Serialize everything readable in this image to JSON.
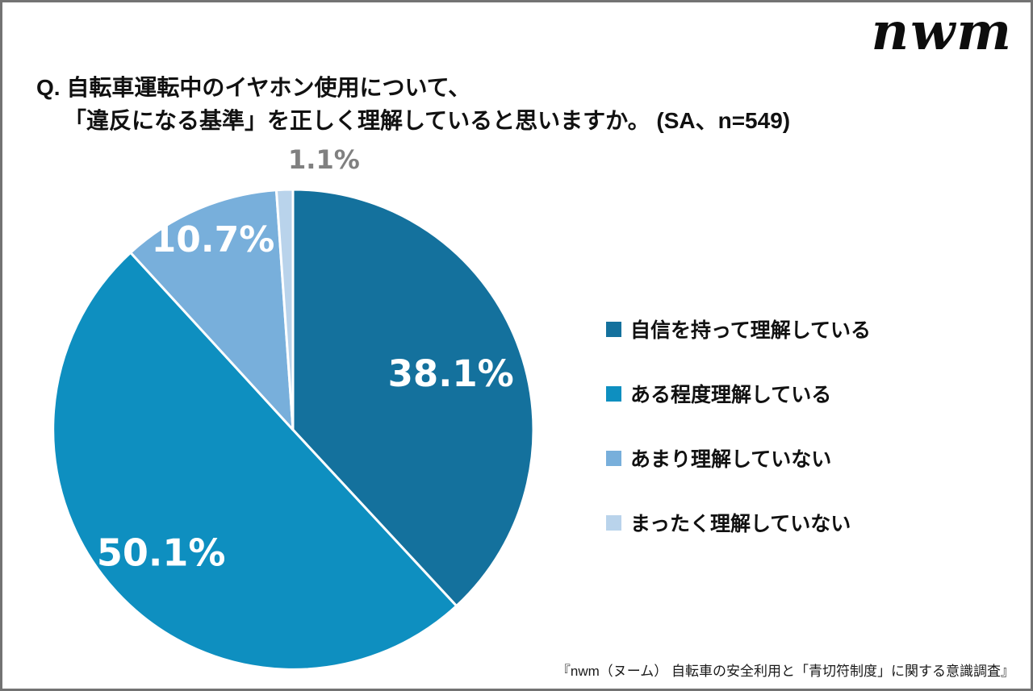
{
  "logo": {
    "text": "nwm"
  },
  "title": {
    "line1": "Q. 自転車運転中のイヤホン使用について、",
    "line2": "「違反になる基準」を正しく理解していると思いますか。 (SA、n=549)"
  },
  "chart_data": {
    "type": "pie",
    "question": "自転車運転中のイヤホン使用について、「違反になる基準」を正しく理解していると思いますか。",
    "survey_type": "SA",
    "n": 549,
    "start_angle_deg": 0,
    "direction": "clockwise",
    "slices": [
      {
        "label": "自信を持って理解している",
        "value": 38.1,
        "color": "#14719D",
        "value_label_color": "#ffffff",
        "value_label_position": "inside"
      },
      {
        "label": "ある程度理解している",
        "value": 50.1,
        "color": "#0E8FC0",
        "value_label_color": "#ffffff",
        "value_label_position": "inside"
      },
      {
        "label": "あまり理解していない",
        "value": 10.7,
        "color": "#78AFDB",
        "value_label_color": "#ffffff",
        "value_label_position": "inside"
      },
      {
        "label": "まったく理解していない",
        "value": 1.1,
        "color": "#B9D3EB",
        "value_label_color": "#808080",
        "value_label_position": "outside"
      }
    ],
    "legend_position": "right",
    "separator_color": "#ffffff"
  },
  "footer": {
    "source": "『nwm（ヌーム） 自転車の安全利用と「青切符制度」に関する意識調査』"
  }
}
